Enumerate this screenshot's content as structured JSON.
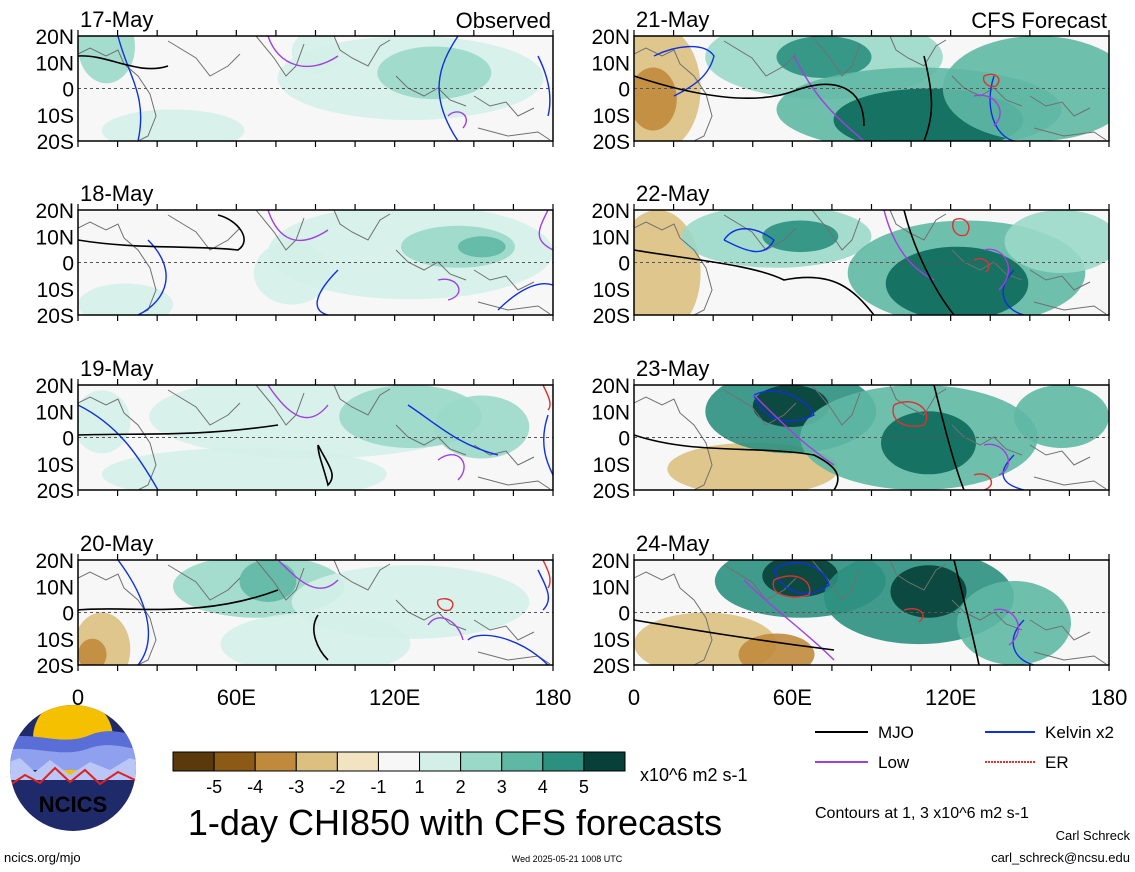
{
  "title": "1-day CHI850 with CFS forecasts",
  "observed_label": "Observed",
  "forecast_label": "CFS Forecast",
  "lat_labels": [
    "20N",
    "10N",
    "0",
    "10S",
    "20S"
  ],
  "lon_labels": [
    "0",
    "60E",
    "120E",
    "180"
  ],
  "observed_dates": [
    "17-May",
    "18-May",
    "19-May",
    "20-May"
  ],
  "forecast_dates": [
    "21-May",
    "22-May",
    "23-May",
    "24-May"
  ],
  "colorbar": {
    "tick_labels": [
      "-5",
      "-4",
      "-3",
      "-2",
      "-1",
      "1",
      "2",
      "3",
      "4",
      "5"
    ],
    "unit": "x10^6 m2 s-1",
    "colors": [
      "#5a3a0a",
      "#8b5a14",
      "#c08a3c",
      "#dcc080",
      "#f2e4c0",
      "#f7f7f7",
      "#d4efe8",
      "#9ad8c8",
      "#5fb8a4",
      "#2c9080",
      "#0c6a5c",
      "#064038"
    ]
  },
  "legend": {
    "mjo": {
      "label": "MJO",
      "color": "#000000"
    },
    "kelvin": {
      "label": "Kelvin x2",
      "color": "#1030e0"
    },
    "low": {
      "label": "Low",
      "color": "#a040e0"
    },
    "er": {
      "label": "ER",
      "color": "#e03030"
    }
  },
  "contours_note": "Contours at 1, 3 x10^6 m2 s-1",
  "author": "Carl Schreck",
  "email": "carl_schreck@ncsu.edu",
  "website": "ncics.org/mjo",
  "timestamp": "Wed 2025-05-21 1008 UTC",
  "logo_text": "NCICS"
}
